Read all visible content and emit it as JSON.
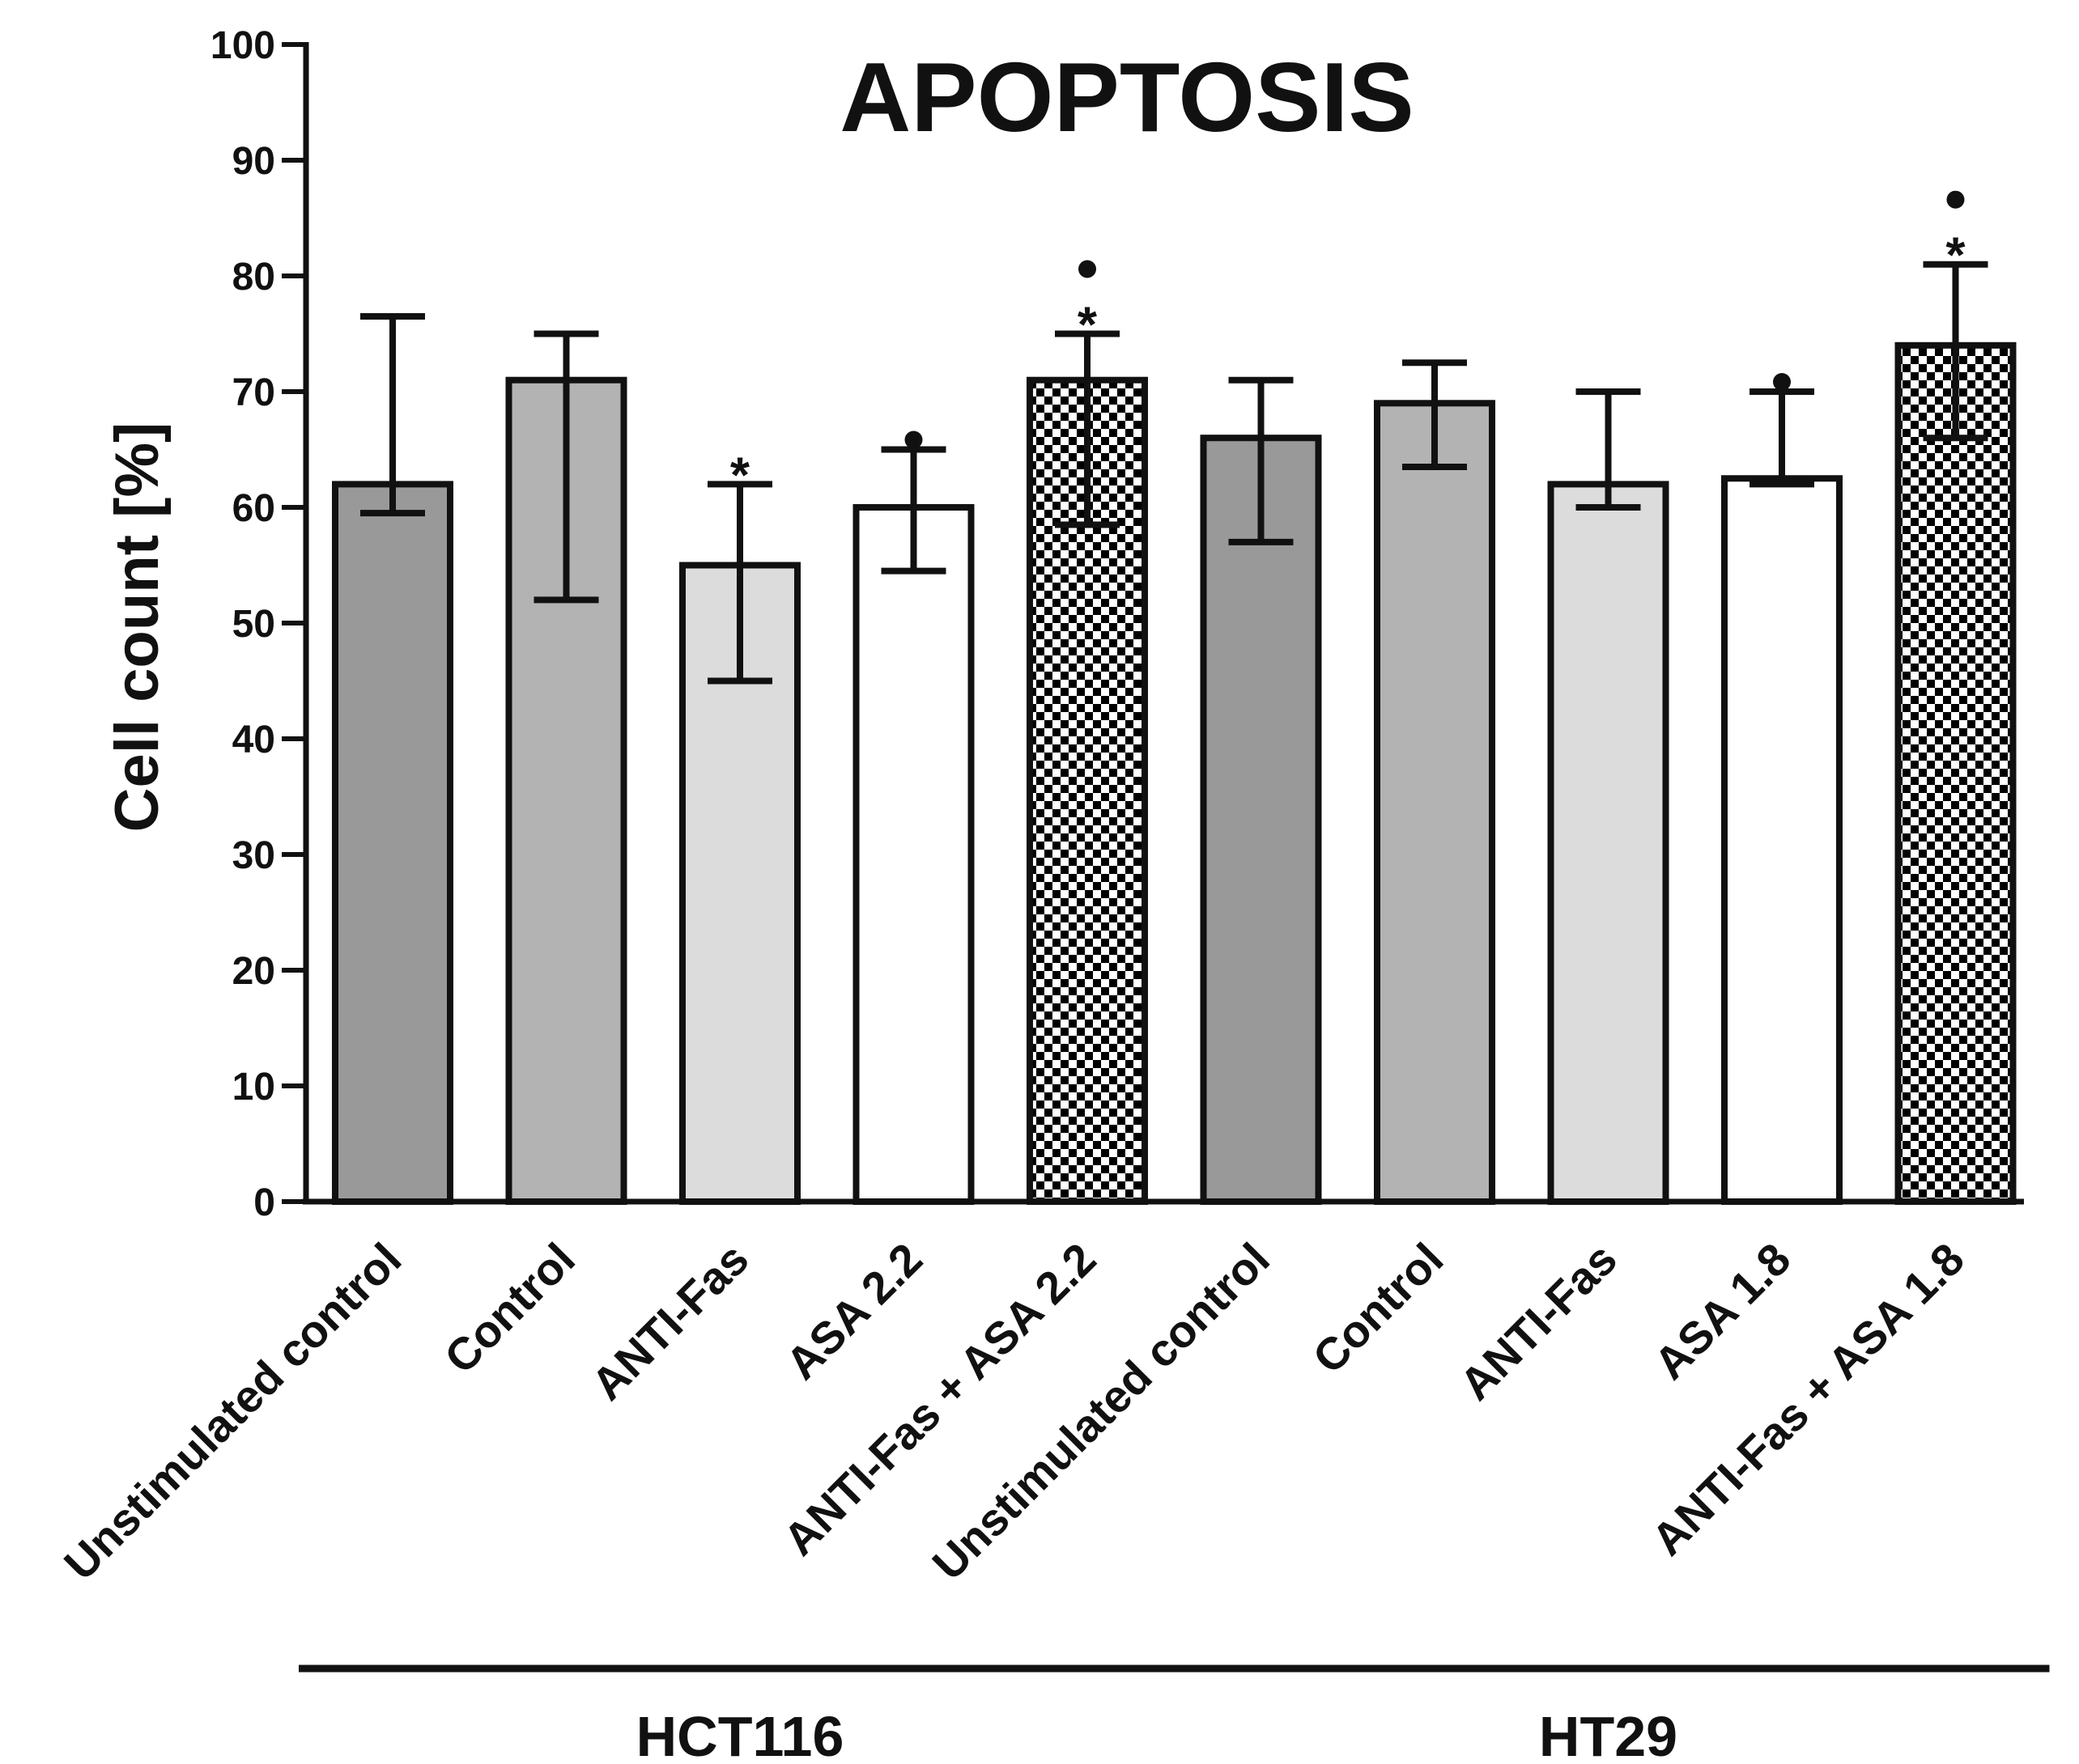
{
  "chart_data": {
    "type": "bar",
    "title": "APOPTOSIS",
    "xlabel": "",
    "ylabel": "Cell count [%]",
    "ylim": [
      0,
      100
    ],
    "yticks": [
      0,
      10,
      20,
      30,
      40,
      50,
      60,
      70,
      80,
      90,
      100
    ],
    "grid": false,
    "legend": "none",
    "categories": [
      "Unstimulated control",
      "Control",
      "ANTI-Fas",
      "ASA 2.2",
      "ANTI-Fas + ASA 2.2",
      "Unstimulated control",
      "Control",
      "ANTI-Fas",
      "ASA 1.8",
      "ANTI-Fas + ASA 1.8"
    ],
    "values": [
      62,
      71,
      55,
      60,
      71,
      66,
      69,
      62,
      62.5,
      74
    ],
    "error_low": [
      59.5,
      52,
      45,
      54.5,
      58.5,
      57,
      63.5,
      60,
      62,
      66
    ],
    "error_high": [
      76.5,
      75,
      62,
      65,
      75,
      71,
      72.5,
      70,
      70,
      81
    ],
    "fills": [
      "dark-gray",
      "medium-gray",
      "light-gray",
      "white",
      "checker",
      "dark-gray",
      "medium-gray",
      "light-gray",
      "white",
      "checker"
    ],
    "significance_star": [
      false,
      false,
      true,
      false,
      true,
      false,
      false,
      false,
      false,
      true
    ],
    "significance_dot": [
      false,
      false,
      false,
      true,
      true,
      false,
      false,
      false,
      true,
      true
    ],
    "star_symbol": "*",
    "groups": [
      {
        "name": "HCT116",
        "categories": [
          0,
          1,
          2,
          3,
          4
        ]
      },
      {
        "name": "HT29",
        "categories": [
          5,
          6,
          7,
          8,
          9
        ]
      }
    ]
  },
  "colors": {
    "dark-gray": "#999999",
    "medium-gray": "#b3b3b3",
    "light-gray": "#dcdcdc",
    "white": "#ffffff",
    "checker_dark": "#000000",
    "checker_light": "#ffffff",
    "stroke": "#111111"
  }
}
